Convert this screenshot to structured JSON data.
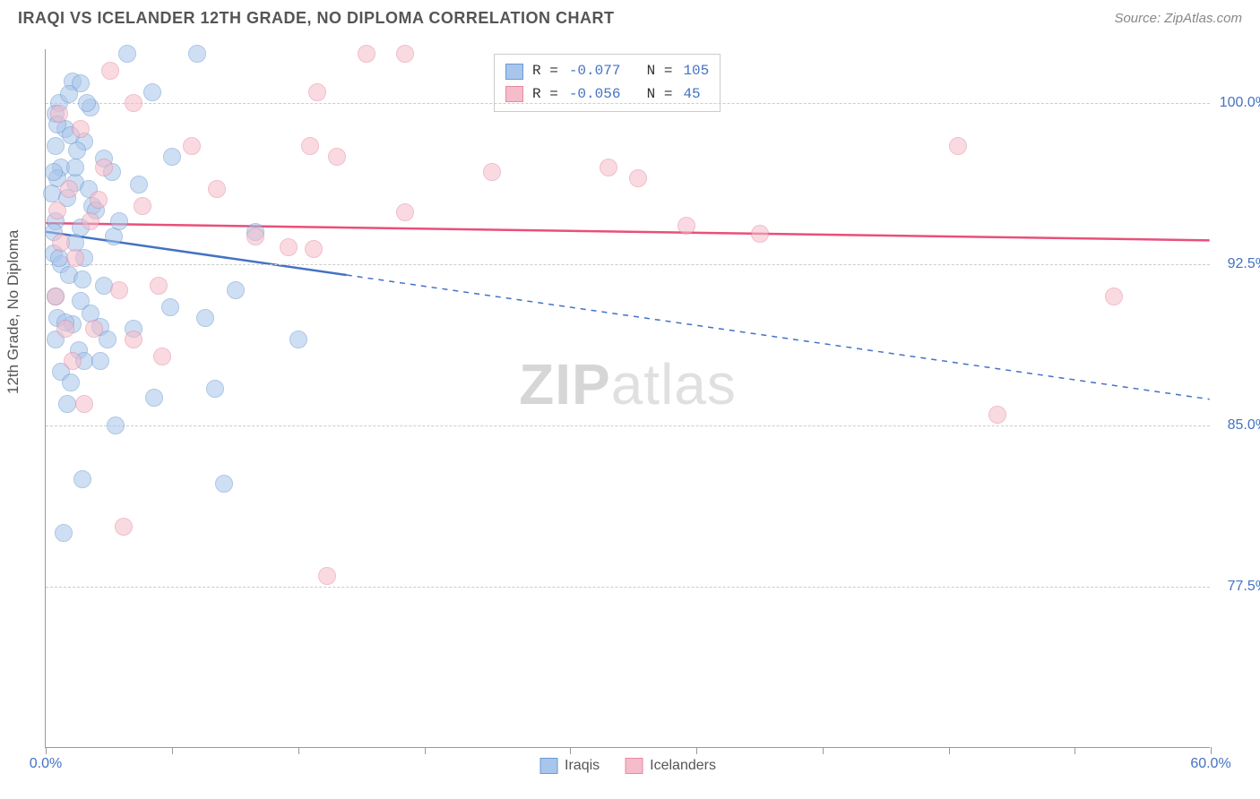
{
  "title": "IRAQI VS ICELANDER 12TH GRADE, NO DIPLOMA CORRELATION CHART",
  "source": "Source: ZipAtlas.com",
  "y_axis_label": "12th Grade, No Diploma",
  "watermark_bold": "ZIP",
  "watermark_light": "atlas",
  "chart": {
    "type": "scatter",
    "xlim": [
      0,
      60
    ],
    "ylim": [
      70,
      102.5
    ],
    "x_ticks": [
      0,
      6.5,
      13,
      19.5,
      27,
      33.5,
      40,
      46.5,
      53,
      60
    ],
    "x_tick_labels": {
      "0": "0.0%",
      "60": "60.0%"
    },
    "y_gridlines": [
      77.5,
      85.0,
      92.5,
      100.0
    ],
    "y_tick_labels": [
      "77.5%",
      "85.0%",
      "92.5%",
      "100.0%"
    ],
    "background_color": "#ffffff",
    "grid_color": "#cccccc",
    "marker_radius": 10,
    "marker_stroke_width": 1.5,
    "series": [
      {
        "name": "Iraqis",
        "fill": "#a8c5eb",
        "stroke": "#6b9bd1",
        "fill_opacity": 0.55,
        "R": "-0.077",
        "N": "105",
        "trend": {
          "solid_to_x": 15.5,
          "y_start": 94.0,
          "y_end": 86.2,
          "color": "#4472c4",
          "width": 2.5
        },
        "points": [
          [
            4.2,
            102.3
          ],
          [
            1.4,
            101.0
          ],
          [
            7.8,
            102.3
          ],
          [
            1.8,
            100.9
          ],
          [
            0.7,
            100.0
          ],
          [
            1.2,
            100.4
          ],
          [
            0.5,
            99.5
          ],
          [
            2.3,
            99.8
          ],
          [
            5.5,
            100.5
          ],
          [
            1.0,
            98.8
          ],
          [
            2.0,
            98.2
          ],
          [
            3.0,
            97.4
          ],
          [
            0.8,
            97.0
          ],
          [
            1.5,
            96.3
          ],
          [
            0.3,
            95.8
          ],
          [
            2.4,
            95.2
          ],
          [
            0.5,
            94.5
          ],
          [
            1.8,
            94.2
          ],
          [
            3.5,
            93.8
          ],
          [
            10.8,
            94.0
          ],
          [
            1.5,
            93.5
          ],
          [
            0.4,
            93.0
          ],
          [
            2.0,
            92.8
          ],
          [
            0.8,
            92.5
          ],
          [
            1.2,
            92.0
          ],
          [
            3.0,
            91.5
          ],
          [
            0.5,
            91.0
          ],
          [
            1.8,
            90.8
          ],
          [
            6.4,
            90.5
          ],
          [
            9.8,
            91.3
          ],
          [
            2.3,
            90.2
          ],
          [
            0.6,
            90.0
          ],
          [
            1.4,
            89.7
          ],
          [
            4.5,
            89.5
          ],
          [
            1.0,
            89.8
          ],
          [
            2.8,
            89.6
          ],
          [
            0.5,
            89.0
          ],
          [
            1.7,
            88.5
          ],
          [
            8.2,
            90.0
          ],
          [
            2.0,
            88.0
          ],
          [
            0.8,
            87.5
          ],
          [
            3.2,
            89.0
          ],
          [
            1.3,
            87.0
          ],
          [
            8.7,
            86.7
          ],
          [
            5.6,
            86.3
          ],
          [
            1.1,
            86.0
          ],
          [
            13.0,
            89.0
          ],
          [
            2.6,
            95.0
          ],
          [
            3.6,
            85.0
          ],
          [
            1.9,
            82.5
          ],
          [
            9.2,
            82.3
          ],
          [
            0.9,
            80.0
          ],
          [
            0.6,
            96.5
          ],
          [
            1.6,
            97.8
          ],
          [
            2.2,
            96.0
          ],
          [
            0.4,
            96.8
          ],
          [
            1.1,
            95.6
          ],
          [
            2.8,
            88.0
          ],
          [
            0.7,
            92.8
          ],
          [
            1.5,
            97.0
          ],
          [
            3.4,
            96.8
          ],
          [
            4.8,
            96.2
          ],
          [
            0.5,
            98.0
          ],
          [
            1.9,
            91.8
          ],
          [
            6.5,
            97.5
          ],
          [
            2.1,
            100.0
          ],
          [
            0.6,
            99.0
          ],
          [
            3.8,
            94.5
          ],
          [
            1.3,
            98.5
          ],
          [
            0.4,
            94.0
          ]
        ]
      },
      {
        "name": "Icelanders",
        "fill": "#f5bcc9",
        "stroke": "#e68aa3",
        "fill_opacity": 0.55,
        "R": "-0.056",
        "N": "45",
        "trend": {
          "solid_to_x": 60,
          "y_start": 94.4,
          "y_end": 93.6,
          "color": "#e94f7a",
          "width": 2.5
        },
        "points": [
          [
            3.3,
            101.5
          ],
          [
            0.7,
            99.5
          ],
          [
            1.8,
            98.8
          ],
          [
            4.5,
            100.0
          ],
          [
            16.5,
            102.3
          ],
          [
            18.5,
            102.3
          ],
          [
            7.5,
            98.0
          ],
          [
            14.0,
            100.5
          ],
          [
            13.6,
            98.0
          ],
          [
            15.0,
            97.5
          ],
          [
            23.0,
            96.8
          ],
          [
            29.0,
            97.0
          ],
          [
            30.5,
            96.5
          ],
          [
            36.8,
            93.9
          ],
          [
            18.5,
            94.9
          ],
          [
            12.5,
            93.3
          ],
          [
            47.0,
            98.0
          ],
          [
            55.0,
            91.0
          ],
          [
            3.0,
            97.0
          ],
          [
            1.2,
            96.0
          ],
          [
            2.3,
            94.5
          ],
          [
            0.8,
            93.5
          ],
          [
            1.5,
            92.8
          ],
          [
            3.8,
            91.3
          ],
          [
            5.8,
            91.5
          ],
          [
            2.5,
            89.5
          ],
          [
            4.5,
            89.0
          ],
          [
            6.0,
            88.2
          ],
          [
            10.8,
            93.8
          ],
          [
            0.5,
            91.0
          ],
          [
            1.0,
            89.5
          ],
          [
            49.0,
            85.5
          ],
          [
            2.0,
            86.0
          ],
          [
            13.8,
            93.2
          ],
          [
            4.0,
            80.3
          ],
          [
            14.5,
            78.0
          ],
          [
            0.6,
            95.0
          ],
          [
            5.0,
            95.2
          ],
          [
            2.7,
            95.5
          ],
          [
            8.8,
            96.0
          ],
          [
            33.0,
            94.3
          ],
          [
            1.4,
            88.0
          ]
        ]
      }
    ]
  },
  "legend_bottom": [
    {
      "label": "Iraqis",
      "fill": "#a8c5eb",
      "stroke": "#6b9bd1"
    },
    {
      "label": "Icelanders",
      "fill": "#f5bcc9",
      "stroke": "#e68aa3"
    }
  ]
}
